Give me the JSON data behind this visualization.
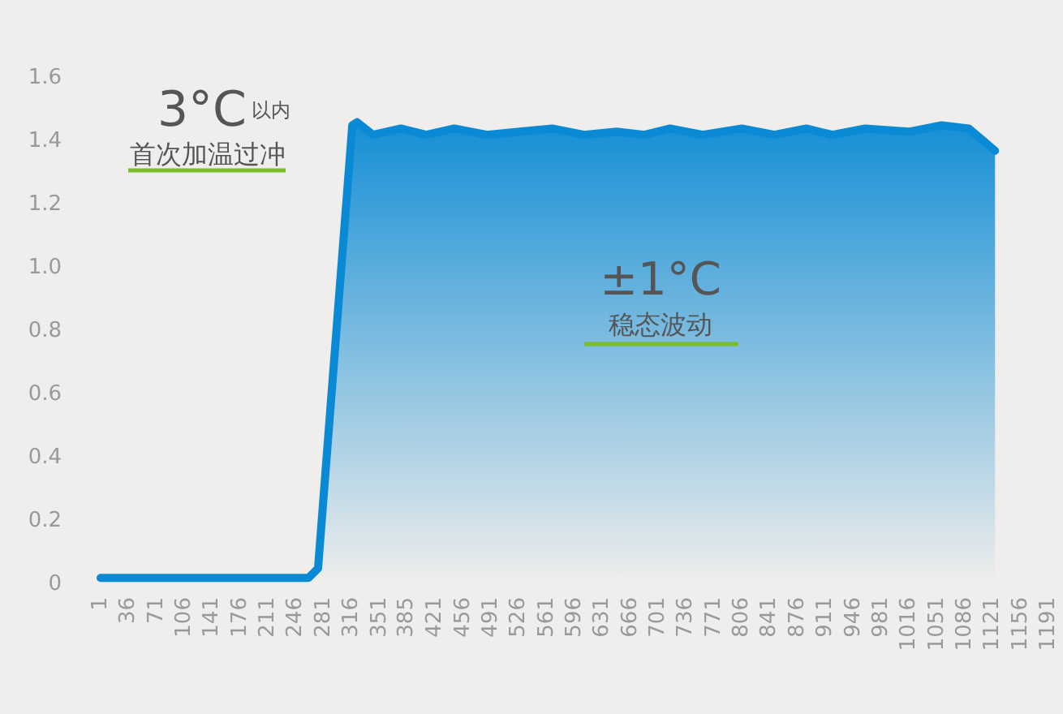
{
  "chart_data": {
    "type": "area",
    "x": [
      1,
      262,
      274,
      317,
      323,
      343,
      378,
      410,
      445,
      486,
      527,
      568,
      608,
      649,
      684,
      716,
      757,
      806,
      847,
      887,
      920,
      961,
      1016,
      1057,
      1091,
      1124
    ],
    "series": [
      {
        "color": "#0a8ad4",
        "values": [
          0.02,
          0.02,
          0.05,
          1.45,
          1.46,
          1.42,
          1.44,
          1.42,
          1.44,
          1.42,
          1.43,
          1.44,
          1.42,
          1.43,
          1.42,
          1.44,
          1.42,
          1.44,
          1.42,
          1.44,
          1.42,
          1.44,
          1.43,
          1.45,
          1.44,
          1.37
        ]
      }
    ],
    "xlim": [
      1,
      1191
    ],
    "xticks": [
      1,
      36,
      71,
      106,
      141,
      176,
      211,
      246,
      281,
      316,
      351,
      385,
      421,
      456,
      491,
      526,
      561,
      596,
      631,
      666,
      701,
      736,
      771,
      806,
      841,
      876,
      911,
      946,
      981,
      1016,
      1051,
      1086,
      1121,
      1156,
      1191
    ],
    "ylim": [
      0,
      1.6
    ],
    "yticks": [
      0,
      0.2,
      0.4,
      0.6,
      0.8,
      {
        "value": 1.0,
        "label": "1.0"
      },
      1.2,
      1.4,
      1.6
    ],
    "annotations": [
      "3°C",
      "以内",
      "首次加温过冲",
      "±1°C",
      "稳态波动"
    ],
    "grid": false
  }
}
